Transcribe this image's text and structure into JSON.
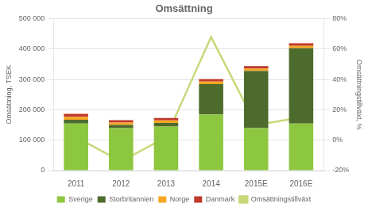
{
  "chart_data": {
    "type": "bar",
    "title": "Omsättning",
    "categories": [
      "2011",
      "2012",
      "2013",
      "2014",
      "2015E",
      "2016E"
    ],
    "stacked": true,
    "grid": true,
    "legend": "bottom",
    "ylabel": "Omsättning, TSEK",
    "y2label": "Omsättningstillväxt, %",
    "ylim": [
      0,
      500000
    ],
    "yticks": [
      0,
      {
        "value": 100000,
        "label": "100 000"
      },
      {
        "value": 200000,
        "label": "200 000"
      },
      {
        "value": 300000,
        "label": "300 000"
      },
      {
        "value": 400000,
        "label": "400 000"
      },
      {
        "value": 500000,
        "label": "500 000"
      }
    ],
    "y2lim": [
      -0.2,
      0.8
    ],
    "y2ticks": [
      {
        "value": -0.2,
        "label": "-20%"
      },
      {
        "value": 0.0,
        "label": "0%"
      },
      {
        "value": 0.2,
        "label": "20%"
      },
      {
        "value": 0.4,
        "label": "40%"
      },
      {
        "value": 0.6,
        "label": "60%"
      },
      {
        "value": 0.8,
        "label": "80%"
      }
    ],
    "series": [
      {
        "name": "Sverige",
        "type": "bar",
        "color": "#8DC63F",
        "values": [
          155000,
          140000,
          145000,
          185000,
          140000,
          155000
        ]
      },
      {
        "name": "Storbritannien",
        "type": "bar",
        "color": "#4E6B2E",
        "values": [
          12000,
          10000,
          12000,
          100000,
          188000,
          248000
        ]
      },
      {
        "name": "Norge",
        "type": "bar",
        "color": "#F5A623",
        "values": [
          10000,
          8000,
          8000,
          8000,
          8000,
          8000
        ]
      },
      {
        "name": "Danmark",
        "type": "bar",
        "color": "#C0392B",
        "values": [
          10000,
          8000,
          8000,
          8000,
          8000,
          8000
        ]
      },
      {
        "name": "Omsättningstillväxt",
        "type": "line",
        "axis": "y2",
        "color": "#C8D87A",
        "values": [
          0.02,
          -0.14,
          0.02,
          0.68,
          0.1,
          0.15
        ]
      }
    ]
  }
}
